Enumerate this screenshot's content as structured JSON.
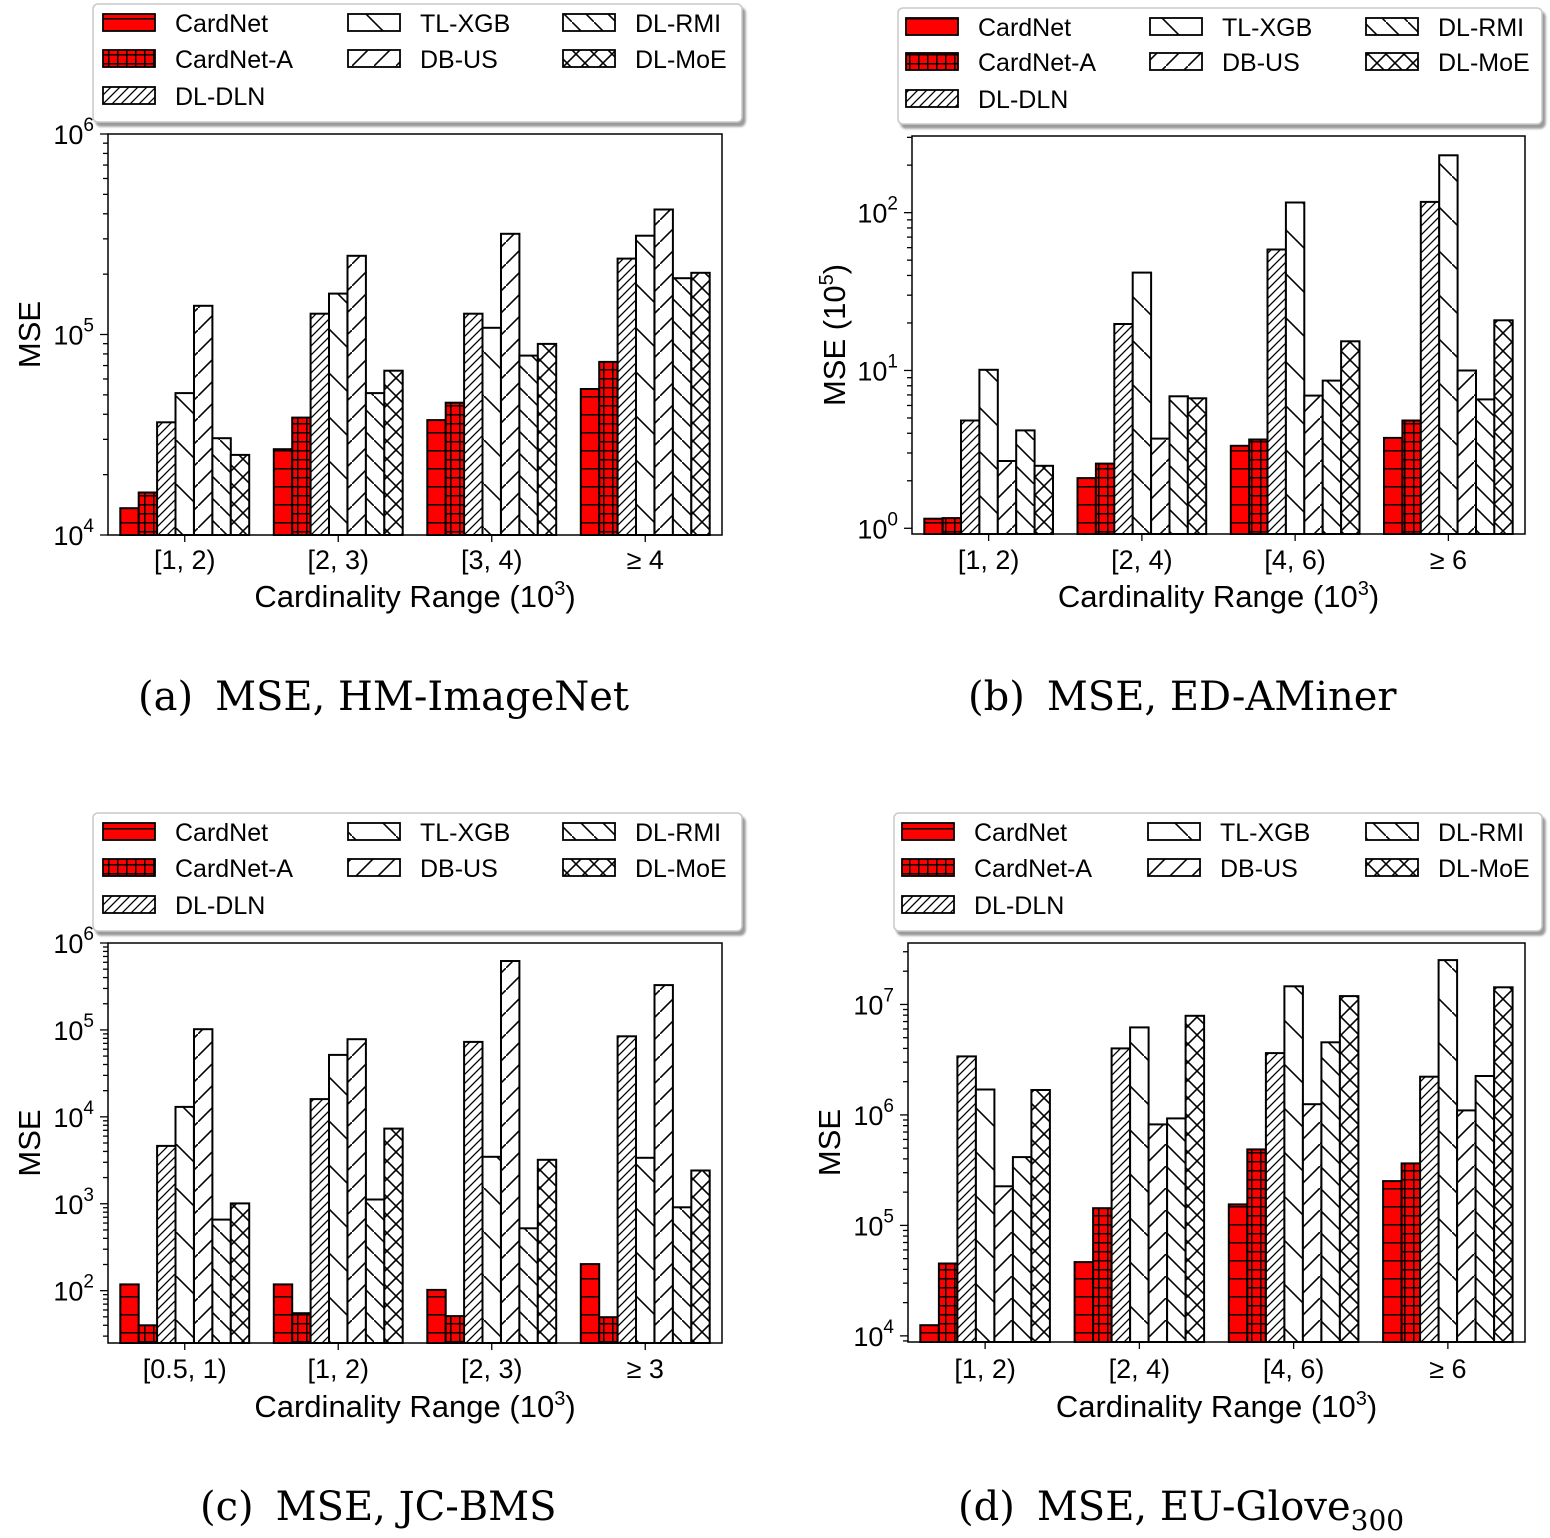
{
  "legend": {
    "entries": [
      {
        "name": "CardNet",
        "pattern": "hline-red"
      },
      {
        "name": "CardNet-A",
        "pattern": "grid-red"
      },
      {
        "name": "DL-DLN",
        "pattern": "dense-fwd"
      },
      {
        "name": "TL-XGB",
        "pattern": "sparse-back"
      },
      {
        "name": "DB-US",
        "pattern": "fwd"
      },
      {
        "name": "DL-RMI",
        "pattern": "back"
      },
      {
        "name": "DL-MoE",
        "pattern": "cross"
      }
    ]
  },
  "colors": {
    "cardnet": "#ff0000",
    "outline": "#000000",
    "legend_border": "#bfbfbf",
    "legend_shadow": "#a0a0a0"
  },
  "chart_data": [
    {
      "id": "a",
      "type": "bar",
      "scale": "log",
      "title": "",
      "caption_label": "(a)",
      "caption_text": "MSE, HM-ImageNet",
      "caption_sub": "",
      "xlabel": "Cardinality Range (10",
      "xlabel_sup": "3",
      "xlabel_end": ")",
      "ylabel": "MSE",
      "ylabel_sup": "",
      "ylabel_end": "",
      "ylim": [
        10000,
        1000000
      ],
      "yticks": [
        {
          "base": "10",
          "exp": "4",
          "value": 10000
        },
        {
          "base": "10",
          "exp": "5",
          "value": 100000
        },
        {
          "base": "10",
          "exp": "6",
          "value": 1000000
        }
      ],
      "categories": [
        "[1, 2)",
        "[2, 3)",
        "[3, 4)",
        "≥ 4"
      ],
      "series": [
        {
          "name": "CardNet",
          "values": [
            13600,
            26800,
            37400,
            53500
          ]
        },
        {
          "name": "CardNet-A",
          "values": [
            16300,
            38500,
            45700,
            73000
          ]
        },
        {
          "name": "DL-DLN",
          "values": [
            36500,
            127000,
            127000,
            239000
          ]
        },
        {
          "name": "TL-XGB",
          "values": [
            51000,
            160000,
            108000,
            311000
          ]
        },
        {
          "name": "DB-US",
          "values": [
            139000,
            247000,
            318000,
            420000
          ]
        },
        {
          "name": "DL-RMI",
          "values": [
            30400,
            51000,
            78500,
            191000
          ]
        },
        {
          "name": "DL-MoE",
          "values": [
            25100,
            66000,
            89800,
            203000
          ]
        }
      ],
      "grid": false,
      "legend_placement": "top"
    },
    {
      "id": "b",
      "type": "bar",
      "scale": "log",
      "title": "",
      "caption_label": "(b)",
      "caption_text": "MSE, ED-AMiner",
      "caption_sub": "",
      "xlabel": "Cardinality Range (10",
      "xlabel_sup": "3",
      "xlabel_end": ")",
      "ylabel": "MSE (10",
      "ylabel_sup": "5",
      "ylabel_end": ")",
      "ylim": [
        0.92,
        306
      ],
      "yticks": [
        {
          "base": "10",
          "exp": "0",
          "value": 1
        },
        {
          "base": "10",
          "exp": "1",
          "value": 10
        },
        {
          "base": "10",
          "exp": "2",
          "value": 100
        }
      ],
      "categories": [
        "[1, 2)",
        "[2, 4)",
        "[4, 6)",
        "≥ 6"
      ],
      "series": [
        {
          "name": "CardNet",
          "values": [
            1.15,
            2.08,
            3.33,
            3.74
          ]
        },
        {
          "name": "CardNet-A",
          "values": [
            1.16,
            2.57,
            3.65,
            4.82
          ]
        },
        {
          "name": "DL-DLN",
          "values": [
            4.82,
            19.7,
            58.4,
            117
          ]
        },
        {
          "name": "TL-XGB",
          "values": [
            10.1,
            41.7,
            116,
            231
          ]
        },
        {
          "name": "DB-US",
          "values": [
            2.67,
            3.7,
            6.93,
            10.0
          ]
        },
        {
          "name": "DL-RMI",
          "values": [
            4.17,
            6.86,
            8.63,
            6.56
          ]
        },
        {
          "name": "DL-MoE",
          "values": [
            2.49,
            6.66,
            15.3,
            20.8
          ]
        }
      ],
      "grid": false,
      "legend_placement": "top"
    },
    {
      "id": "c",
      "type": "bar",
      "scale": "log",
      "title": "",
      "caption_label": "(c)",
      "caption_text": "MSE, JC-BMS",
      "caption_sub": "",
      "xlabel": "Cardinality Range (10",
      "xlabel_sup": "3",
      "xlabel_end": ")",
      "ylabel": "MSE",
      "ylabel_sup": "",
      "ylabel_end": "",
      "ylim": [
        25,
        1000000
      ],
      "yticks": [
        {
          "base": "10",
          "exp": "2",
          "value": 100
        },
        {
          "base": "10",
          "exp": "3",
          "value": 1000
        },
        {
          "base": "10",
          "exp": "4",
          "value": 10000
        },
        {
          "base": "10",
          "exp": "5",
          "value": 100000
        },
        {
          "base": "10",
          "exp": "6",
          "value": 1000000
        }
      ],
      "categories": [
        "[0.5, 1)",
        "[1, 2)",
        "[2, 3)",
        "≥ 3"
      ],
      "series": [
        {
          "name": "CardNet",
          "values": [
            118,
            118,
            102,
            202
          ]
        },
        {
          "name": "CardNet-A",
          "values": [
            40,
            55,
            51,
            49.5
          ]
        },
        {
          "name": "DL-DLN",
          "values": [
            4630,
            16000,
            72800,
            84500
          ]
        },
        {
          "name": "TL-XGB",
          "values": [
            13000,
            51600,
            3470,
            3380
          ]
        },
        {
          "name": "DB-US",
          "values": [
            102000,
            78200,
            620000,
            328000
          ]
        },
        {
          "name": "DL-RMI",
          "values": [
            658,
            1120,
            522,
            910
          ]
        },
        {
          "name": "DL-MoE",
          "values": [
            1010,
            7330,
            3200,
            2410
          ]
        }
      ],
      "grid": false,
      "legend_placement": "top"
    },
    {
      "id": "d",
      "type": "bar",
      "scale": "log",
      "title": "",
      "caption_label": "(d)",
      "caption_text": "MSE, EU-Glove",
      "caption_sub": "300",
      "xlabel": "Cardinality Range (10",
      "xlabel_sup": "3",
      "xlabel_end": ")",
      "ylabel": "MSE",
      "ylabel_sup": "",
      "ylabel_end": "",
      "ylim": [
        8800,
        36000000
      ],
      "yticks": [
        {
          "base": "10",
          "exp": "4",
          "value": 10000
        },
        {
          "base": "10",
          "exp": "5",
          "value": 100000
        },
        {
          "base": "10",
          "exp": "6",
          "value": 1000000
        },
        {
          "base": "10",
          "exp": "7",
          "value": 10000000
        }
      ],
      "categories": [
        "[1, 2)",
        "[2, 4)",
        "[4, 6)",
        "≥ 6"
      ],
      "series": [
        {
          "name": "CardNet",
          "values": [
            12500,
            46500,
            155000,
            252000
          ]
        },
        {
          "name": "CardNet-A",
          "values": [
            45200,
            143000,
            487000,
            364000
          ]
        },
        {
          "name": "DL-DLN",
          "values": [
            3390000,
            4000000,
            3630000,
            2220000
          ]
        },
        {
          "name": "TL-XGB",
          "values": [
            1700000,
            6200000,
            14600000,
            25200000
          ]
        },
        {
          "name": "DB-US",
          "values": [
            226000,
            820000,
            1250000,
            1100000
          ]
        },
        {
          "name": "DL-RMI",
          "values": [
            415000,
            930000,
            4540000,
            2250000
          ]
        },
        {
          "name": "DL-MoE",
          "values": [
            1680000,
            7900000,
            11900000,
            14300000
          ]
        }
      ],
      "grid": false,
      "legend_placement": "top"
    }
  ]
}
